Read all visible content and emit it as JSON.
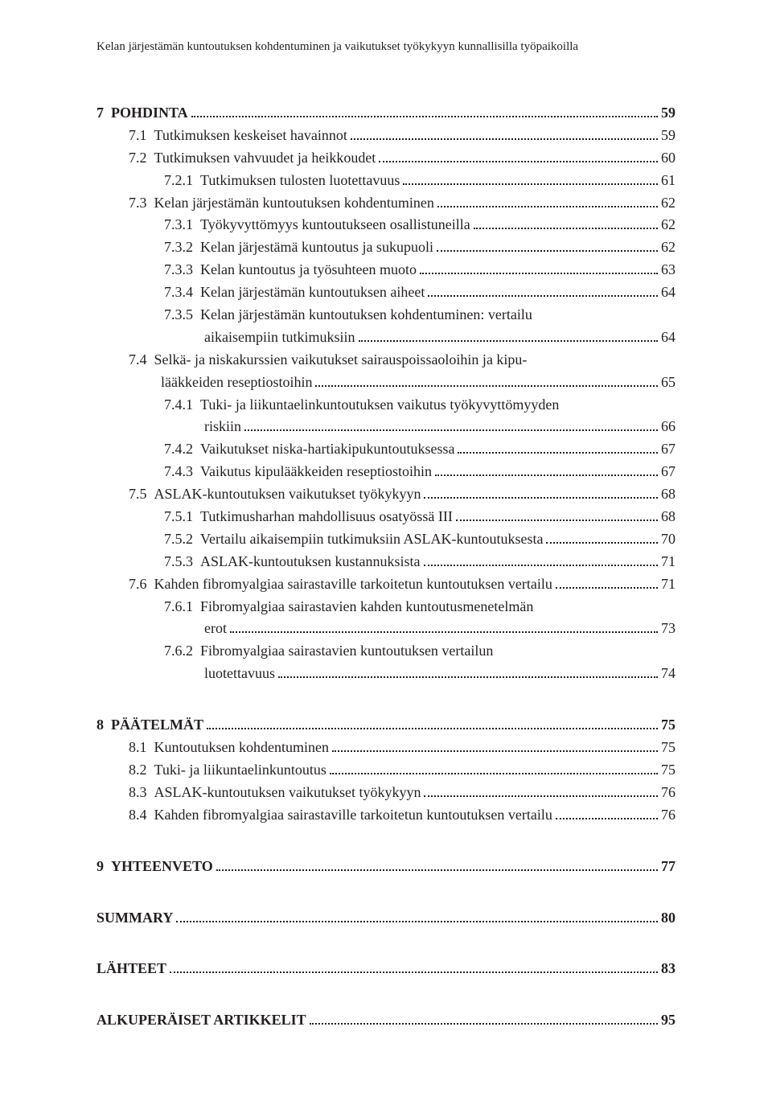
{
  "running_head": "Kelan järjestämän kuntoutuksen kohdentuminen ja vaikutukset työkykyyn kunnallisilla työpaikoilla",
  "toc": [
    {
      "type": "line",
      "level": 0,
      "bold": true,
      "num": "7",
      "label": "POHDINTA",
      "page": "59"
    },
    {
      "type": "line",
      "level": 1,
      "num": "7.1",
      "label": "Tutkimuksen keskeiset havainnot",
      "page": "59"
    },
    {
      "type": "line",
      "level": 1,
      "num": "7.2",
      "label": "Tutkimuksen vahvuudet ja heikkoudet",
      "page": "60"
    },
    {
      "type": "line",
      "level": 2,
      "num": "7.2.1",
      "label": "Tutkimuksen tulosten luotettavuus",
      "page": "61"
    },
    {
      "type": "line",
      "level": 1,
      "num": "7.3",
      "label": "Kelan järjestämän kuntoutuksen kohdentuminen",
      "page": "62"
    },
    {
      "type": "line",
      "level": 2,
      "num": "7.3.1",
      "label": "Työkyvyttömyys kuntoutukseen osallistuneilla",
      "page": "62"
    },
    {
      "type": "line",
      "level": 2,
      "num": "7.3.2",
      "label": "Kelan järjestämä kuntoutus ja sukupuoli",
      "page": "62"
    },
    {
      "type": "line",
      "level": 2,
      "num": "7.3.3",
      "label": "Kelan kuntoutus ja työsuhteen muoto",
      "page": "63"
    },
    {
      "type": "line",
      "level": 2,
      "num": "7.3.4",
      "label": "Kelan järjestämän kuntoutuksen aiheet",
      "page": "64"
    },
    {
      "type": "wrap",
      "first": {
        "level": 2,
        "num": "7.3.5",
        "label": "Kelan järjestämän kuntoutuksen kohdentuminen: vertailu"
      },
      "second": {
        "indent": "lvl2-cont",
        "label": "aikaisempiin tutkimuksiin",
        "page": "64"
      }
    },
    {
      "type": "wrap",
      "first": {
        "level": 1,
        "num": "7.4",
        "label": "Selkä- ja niskakurssien vaikutukset sairauspoissaoloihin ja kipu-"
      },
      "second": {
        "indent": "lvl1-cont",
        "label": "lääkkeiden reseptiostoihin",
        "page": "65"
      }
    },
    {
      "type": "wrap",
      "first": {
        "level": 2,
        "num": "7.4.1",
        "label": "Tuki- ja liikuntaelinkuntoutuksen vaikutus työkyvyttömyyden"
      },
      "second": {
        "indent": "lvl2-cont",
        "label": "riskiin",
        "page": "66"
      }
    },
    {
      "type": "line",
      "level": 2,
      "num": "7.4.2",
      "label": "Vaikutukset niska-hartiakipukuntoutuksessa",
      "page": "67"
    },
    {
      "type": "line",
      "level": 2,
      "num": "7.4.3",
      "label": "Vaikutus kipulääkkeiden reseptiostoihin",
      "page": "67"
    },
    {
      "type": "line",
      "level": 1,
      "num": "7.5",
      "label": "ASLAK-kuntoutuksen vaikutukset työkykyyn",
      "page": "68"
    },
    {
      "type": "line",
      "level": 2,
      "num": "7.5.1",
      "label": "Tutkimusharhan mahdollisuus osatyössä III",
      "page": "68"
    },
    {
      "type": "line",
      "level": 2,
      "num": "7.5.2",
      "label": "Vertailu aikaisempiin tutkimuksiin ASLAK-kuntoutuksesta",
      "page": "70"
    },
    {
      "type": "line",
      "level": 2,
      "num": "7.5.3",
      "label": "ASLAK-kuntoutuksen kustannuksista",
      "page": "71"
    },
    {
      "type": "line",
      "level": 1,
      "num": "7.6",
      "label": "Kahden fibromyalgiaa sairastaville tarkoitetun kuntoutuksen vertailu",
      "page": "71"
    },
    {
      "type": "wrap",
      "first": {
        "level": 2,
        "num": "7.6.1",
        "label": "Fibromyalgiaa sairastavien kahden kuntoutusmenetelmän"
      },
      "second": {
        "indent": "lvl2-cont",
        "label": "erot",
        "page": "73"
      }
    },
    {
      "type": "wrap",
      "first": {
        "level": 2,
        "num": "7.6.2",
        "label": "Fibromyalgiaa sairastavien kuntoutuksen vertailun"
      },
      "second": {
        "indent": "lvl2-cont",
        "label": "luotettavuus",
        "page": "74"
      }
    },
    {
      "type": "spacer"
    },
    {
      "type": "line",
      "level": 0,
      "bold": true,
      "num": "8",
      "label": "PÄÄTELMÄT",
      "page": "75"
    },
    {
      "type": "line",
      "level": 1,
      "num": "8.1",
      "label": "Kuntoutuksen kohdentuminen",
      "page": "75"
    },
    {
      "type": "line",
      "level": 1,
      "num": "8.2",
      "label": "Tuki- ja liikuntaelinkuntoutus",
      "page": "75"
    },
    {
      "type": "line",
      "level": 1,
      "num": "8.3",
      "label": "ASLAK-kuntoutuksen vaikutukset työkykyyn",
      "page": "76"
    },
    {
      "type": "line",
      "level": 1,
      "num": "8.4",
      "label": "Kahden fibromyalgiaa sairastaville tarkoitetun kuntoutuksen vertailu",
      "page": "76"
    },
    {
      "type": "spacer"
    },
    {
      "type": "line",
      "level": 0,
      "bold": true,
      "num": "9",
      "label": "YHTEENVETO",
      "page": "77"
    },
    {
      "type": "spacer"
    },
    {
      "type": "line",
      "level": 0,
      "bold": true,
      "num": "",
      "label": "SUMMARY",
      "page": "80"
    },
    {
      "type": "spacer"
    },
    {
      "type": "line",
      "level": 0,
      "bold": true,
      "num": "",
      "label": "LÄHTEET",
      "page": "83"
    },
    {
      "type": "spacer"
    },
    {
      "type": "line",
      "level": 0,
      "bold": true,
      "num": "",
      "label": "ALKUPERÄISET ARTIKKELIT",
      "page": "95"
    }
  ]
}
